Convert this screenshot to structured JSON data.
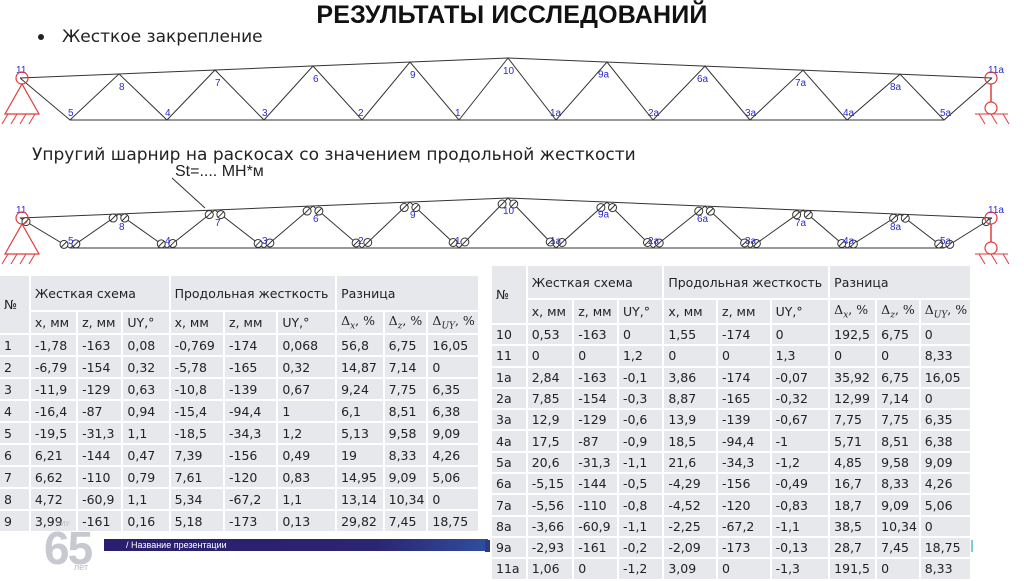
{
  "title": "РЕЗУЛЬТАТЫ ИССЛЕДОВАНИЙ",
  "section1": {
    "bullet": "Жесткое закрепление"
  },
  "section2": {
    "heading": "Упругий шарнир на раскосах со значением продольной жесткости",
    "stiffness_label": "St=.... МН*м"
  },
  "truss": {
    "color_members": "#333333",
    "color_labels": "#2a2ad8",
    "color_supports": "#e23a3a",
    "left_labels": [
      "11",
      "5",
      "8",
      "4",
      "7",
      "3",
      "6",
      "2",
      "9",
      "1",
      "10"
    ],
    "right_labels": [
      "1a",
      "9a",
      "2a",
      "6a",
      "3a",
      "7a",
      "4a",
      "8a",
      "5a",
      "11a"
    ]
  },
  "table_headers": {
    "num": "№",
    "rigid": "Жесткая схема",
    "longitudinal": "Продольная жесткость",
    "difference": "Разница",
    "x": "x, мм",
    "z": "z, мм",
    "uy": "UY,°",
    "dx": "Δ",
    "dx_sub": "x",
    "dz": "Δ",
    "dz_sub": "z",
    "duy": "Δ",
    "duy_sub": "UY",
    "pct": ", %"
  },
  "table_left": {
    "rows": [
      [
        "1",
        "-1,78",
        "-163",
        "0,08",
        "-0,769",
        "-174",
        "0,068",
        "56,8",
        "6,75",
        "16,05"
      ],
      [
        "2",
        "-6,79",
        "-154",
        "0,32",
        "-5,78",
        "-165",
        "0,32",
        "14,87",
        "7,14",
        "0"
      ],
      [
        "3",
        "-11,9",
        "-129",
        "0,63",
        "-10,8",
        "-139",
        "0,67",
        "9,24",
        "7,75",
        "6,35"
      ],
      [
        "4",
        "-16,4",
        "-87",
        "0,94",
        "-15,4",
        "-94,4",
        "1",
        "6,1",
        "8,51",
        "6,38"
      ],
      [
        "5",
        "-19,5",
        "-31,3",
        "1,1",
        "-18,5",
        "-34,3",
        "1,2",
        "5,13",
        "9,58",
        "9,09"
      ],
      [
        "6",
        "6,21",
        "-144",
        "0,47",
        "7,39",
        "-156",
        "0,49",
        "19",
        "8,33",
        "4,26"
      ],
      [
        "7",
        "6,62",
        "-110",
        "0,79",
        "7,61",
        "-120",
        "0,83",
        "14,95",
        "9,09",
        "5,06"
      ],
      [
        "8",
        "4,72",
        "-60,9",
        "1,1",
        "5,34",
        "-67,2",
        "1,1",
        "13,14",
        "10,34",
        "0"
      ],
      [
        "9",
        "3,99",
        "-161",
        "0,16",
        "5,18",
        "-173",
        "0,13",
        "29,82",
        "7,45",
        "18,75"
      ]
    ]
  },
  "table_right": {
    "rows": [
      [
        "10",
        "0,53",
        "-163",
        "0",
        "1,55",
        "-174",
        "0",
        "192,5",
        "6,75",
        "0"
      ],
      [
        "11",
        "0",
        "0",
        "1,2",
        "0",
        "0",
        "1,3",
        "0",
        "0",
        "8,33"
      ],
      [
        "1a",
        "2,84",
        "-163",
        "-0,1",
        "3,86",
        "-174",
        "-0,07",
        "35,92",
        "6,75",
        "16,05"
      ],
      [
        "2a",
        "7,85",
        "-154",
        "-0,3",
        "8,87",
        "-165",
        "-0,32",
        "12,99",
        "7,14",
        "0"
      ],
      [
        "3a",
        "12,9",
        "-129",
        "-0,6",
        "13,9",
        "-139",
        "-0,67",
        "7,75",
        "7,75",
        "6,35"
      ],
      [
        "4a",
        "17,5",
        "-87",
        "-0,9",
        "18,5",
        "-94,4",
        "-1",
        "5,71",
        "8,51",
        "6,38"
      ],
      [
        "5a",
        "20,6",
        "-31,3",
        "-1,1",
        "21,6",
        "-34,3",
        "-1,2",
        "4,85",
        "9,58",
        "9,09"
      ],
      [
        "6a",
        "-5,15",
        "-144",
        "-0,5",
        "-4,29",
        "-156",
        "-0,49",
        "16,7",
        "8,33",
        "4,26"
      ],
      [
        "7a",
        "-5,56",
        "-110",
        "-0,8",
        "-4,52",
        "-120",
        "-0,83",
        "18,7",
        "9,09",
        "5,06"
      ],
      [
        "8a",
        "-3,66",
        "-60,9",
        "-1,1",
        "-2,25",
        "-67,2",
        "-1,1",
        "38,5",
        "10,34",
        "0"
      ],
      [
        "9a",
        "-2,93",
        "-161",
        "-0,2",
        "-2,09",
        "-173",
        "-0,13",
        "28,7",
        "7,45",
        "18,75"
      ],
      [
        "11a",
        "1,06",
        "0",
        "-1,2",
        "3,09",
        "0",
        "-1,3",
        "191,5",
        "0",
        "8,33"
      ]
    ]
  },
  "footer": {
    "logo_number": "65",
    "logo_top": "ТИУ",
    "logo_bottom": "лет",
    "presentation_name": "/ Название презентации",
    "bar_color": "#2a1f6e"
  }
}
